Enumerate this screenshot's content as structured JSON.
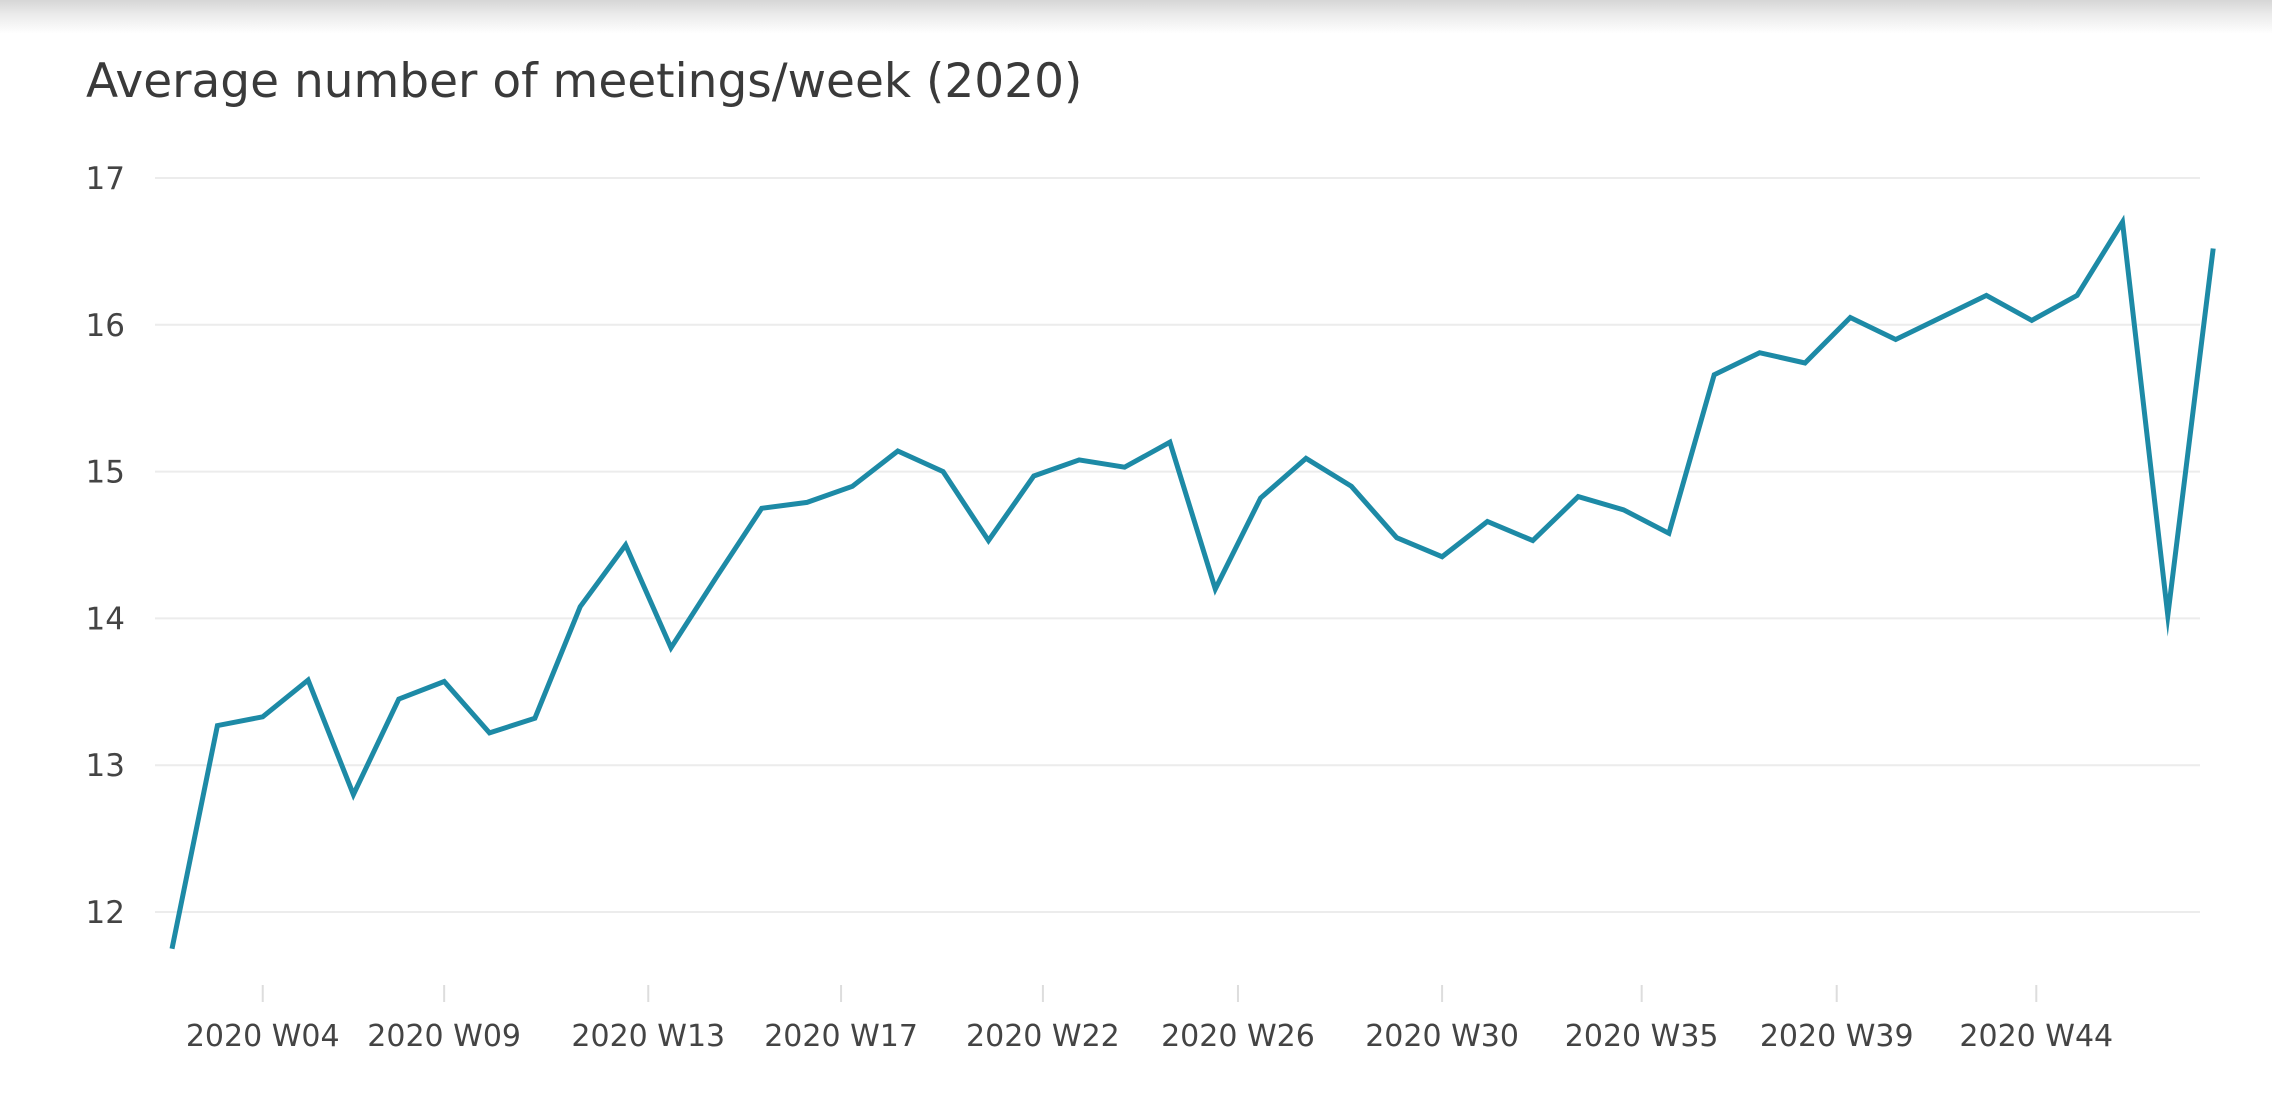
{
  "chart_data": {
    "type": "line",
    "title": "Average number of meetings/week (2020)",
    "xlabel": "",
    "ylabel": "",
    "ylim": [
      11.5,
      17.25
    ],
    "y_ticks": [
      "17",
      "16",
      "15",
      "14",
      "13",
      "12"
    ],
    "x_tick_labels": [
      {
        "label": "2020 W04",
        "week": 4
      },
      {
        "label": "2020 W09",
        "week": 8
      },
      {
        "label": "2020 W13",
        "week": 12.5
      },
      {
        "label": "2020 W17",
        "week": 16.75
      },
      {
        "label": "2020 W22",
        "week": 21.2
      },
      {
        "label": "2020 W26",
        "week": 25.5
      },
      {
        "label": "2020 W30",
        "week": 30
      },
      {
        "label": "2020 W35",
        "week": 34.4
      },
      {
        "label": "2020 W39",
        "week": 38.7
      },
      {
        "label": "2020 W44",
        "week": 43.1
      }
    ],
    "grid": true,
    "line_color": "#1d8aa6",
    "series": [
      {
        "x": [
          2,
          3,
          4,
          5,
          6,
          7,
          8,
          9,
          10,
          11,
          12,
          13,
          14,
          15,
          16,
          17,
          18,
          19,
          20,
          21,
          22,
          23,
          24,
          25,
          26,
          27,
          28,
          29,
          30,
          31,
          32,
          33,
          34,
          35,
          36,
          37,
          38,
          39,
          40,
          41,
          42,
          43,
          44,
          45,
          46,
          47
        ],
        "values": [
          11.75,
          13.27,
          13.33,
          13.58,
          12.8,
          13.45,
          13.57,
          13.22,
          13.32,
          14.08,
          14.5,
          13.8,
          14.28,
          14.75,
          14.79,
          14.9,
          15.14,
          15.0,
          14.53,
          14.97,
          15.08,
          15.03,
          15.2,
          14.2,
          14.82,
          15.09,
          14.9,
          14.55,
          14.42,
          14.66,
          14.53,
          14.83,
          14.74,
          14.58,
          15.66,
          15.81,
          15.74,
          16.05,
          15.9,
          16.05,
          16.2,
          16.03,
          16.2,
          16.7,
          14.02,
          16.52
        ]
      }
    ]
  }
}
